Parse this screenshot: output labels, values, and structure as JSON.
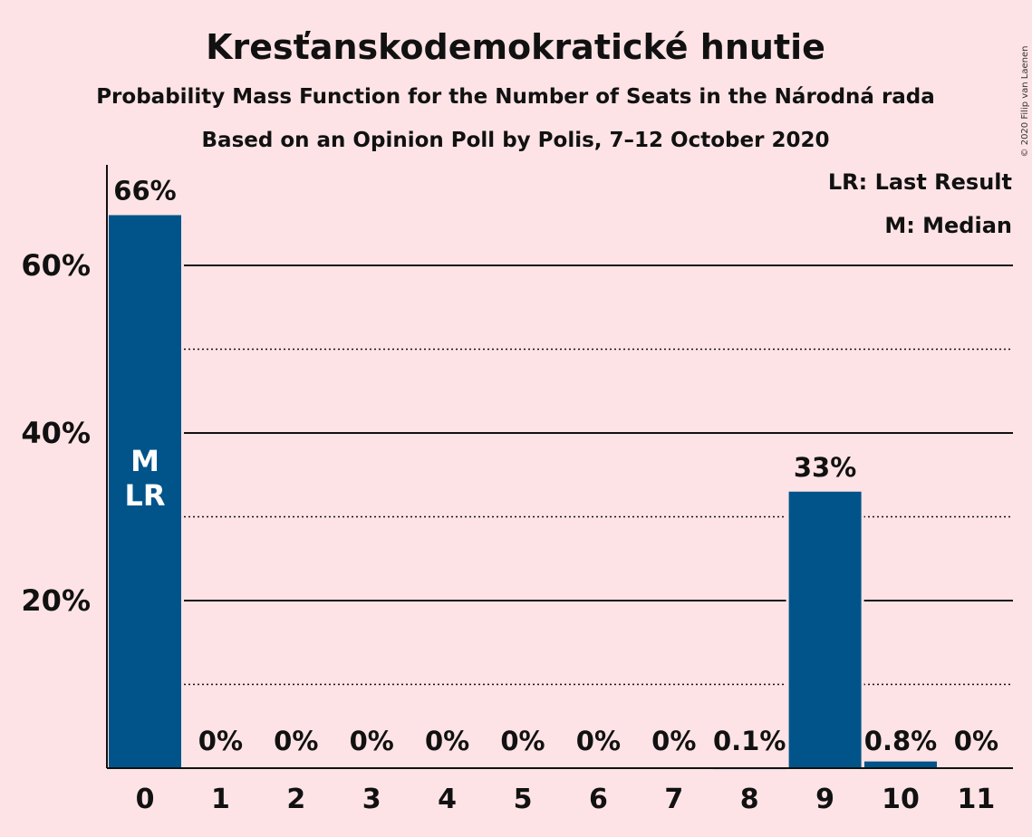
{
  "header": {
    "title": "Kresťanskodemokratické hnutie",
    "subtitle1": "Probability Mass Function for the Number of Seats in the Národná rada",
    "subtitle2": "Based on an Opinion Poll by Polis, 7–12 October 2020"
  },
  "legend": {
    "last_result": "LR: Last Result",
    "median": "M: Median"
  },
  "copyright": "© 2020 Filip van Laenen",
  "colors": {
    "background": "#fde3e6",
    "bar": "#00548a",
    "text": "#111111",
    "annotation": "#ffffff"
  },
  "chart_data": {
    "type": "bar",
    "categories": [
      "0",
      "1",
      "2",
      "3",
      "4",
      "5",
      "6",
      "7",
      "8",
      "9",
      "10",
      "11"
    ],
    "values": [
      66,
      0,
      0,
      0,
      0,
      0,
      0,
      0,
      0.1,
      33,
      0.8,
      0
    ],
    "value_labels": [
      "66%",
      "0%",
      "0%",
      "0%",
      "0%",
      "0%",
      "0%",
      "0%",
      "0.1%",
      "33%",
      "0.8%",
      "0%"
    ],
    "ylim": [
      0,
      72
    ],
    "y_ticks": [
      20,
      40,
      60
    ],
    "y_tick_labels": [
      "20%",
      "40%",
      "60%"
    ],
    "grid_major": [
      20,
      40,
      60
    ],
    "grid_minor": [
      10,
      30,
      50
    ],
    "median_seat": "0",
    "last_result_seat": "0",
    "median_mark": "M",
    "last_result_mark": "LR",
    "legend_position": "top-right"
  }
}
